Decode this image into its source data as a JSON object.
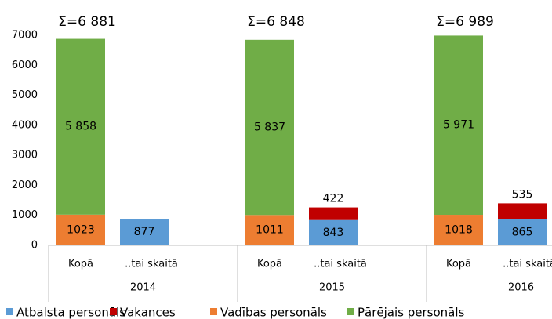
{
  "chart_data": {
    "type": "stacked_bar",
    "groups": [
      "2014",
      "2015",
      "2016"
    ],
    "categories": [
      "Kopā",
      "..tai skaitā",
      "Kopā",
      "..tai skaitā",
      "Kopā",
      "..tai skaitā"
    ],
    "series": [
      {
        "name": "Atbalsta personāls",
        "color": "#5b9bd5",
        "values": [
          null,
          877,
          null,
          843,
          null,
          865
        ]
      },
      {
        "name": "Vakances",
        "color": "#c00000",
        "values": [
          null,
          null,
          null,
          422,
          null,
          535
        ]
      },
      {
        "name": "Vadības personāls",
        "color": "#ed7d31",
        "values": [
          1023,
          null,
          1011,
          null,
          1018,
          null
        ]
      },
      {
        "name": "Pārējais personāls",
        "color": "#70ad47",
        "values": [
          5858,
          null,
          5837,
          null,
          5971,
          null
        ],
        "value_labels": [
          "5 858",
          null,
          "5 837",
          null,
          "5 971",
          null
        ]
      }
    ],
    "totals": [
      6881,
      6848,
      6989
    ],
    "total_labels": [
      "Σ=6 881",
      "Σ=6 848",
      "Σ=6 989"
    ],
    "ylim": [
      0,
      7000
    ],
    "yticks": [
      0,
      1000,
      2000,
      3000,
      4000,
      5000,
      6000,
      7000
    ],
    "grid": false
  }
}
